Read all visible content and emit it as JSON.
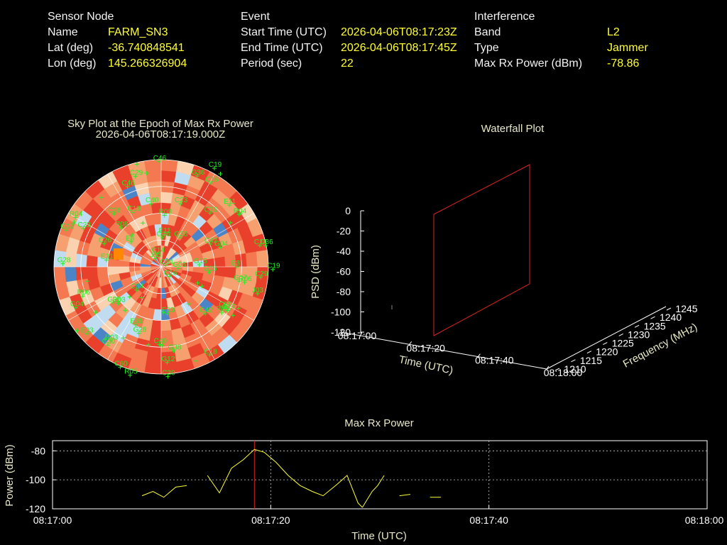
{
  "sensor": {
    "header": "Sensor Node",
    "rows": [
      {
        "label": "Name",
        "value": "FARM_SN3"
      },
      {
        "label": "Lat (deg)",
        "value": "-36.740848541"
      },
      {
        "label": "Lon (deg)",
        "value": "145.266326904"
      }
    ]
  },
  "event": {
    "header": "Event",
    "rows": [
      {
        "label": "Start Time (UTC)",
        "value": "2026-04-06T08:17:23Z"
      },
      {
        "label": "End Time (UTC)",
        "value": "2026-04-06T08:17:45Z"
      },
      {
        "label": "Period (sec)",
        "value": "22"
      }
    ]
  },
  "interference": {
    "header": "Interference",
    "rows": [
      {
        "label": "Band",
        "value": "L2"
      },
      {
        "label": "Type",
        "value": "Jammer"
      },
      {
        "label": "Max Rx Power (dBm)",
        "value": "-78.86"
      }
    ]
  },
  "skyplot": {
    "title_line1": "Sky Plot at the Epoch of Max Rx Power",
    "title_line2": "2026-04-06T08:17:19.000Z",
    "satellite_labels": [
      "R05",
      "G06",
      "G38",
      "E8",
      "C40",
      "G17",
      "R06",
      "C29",
      "G04",
      "E11",
      "C14",
      "C42",
      "G28",
      "R04",
      "C36",
      "E03",
      "C18",
      "C23",
      "R03",
      "C60",
      "C34",
      "E31",
      "C19",
      "R08",
      "C30",
      "G12",
      "C26",
      "G36",
      "C16",
      "C46",
      "J03",
      "G15"
    ],
    "colors": {
      "hot": "#e8402a",
      "warm": "#f6a070",
      "cool": "#c0dcf0",
      "cold": "#4c84c8",
      "peak": "#ff8800",
      "sat": "#22ee22"
    }
  },
  "waterfall": {
    "title": "Waterfall Plot",
    "z_label": "PSD (dBm)",
    "z_ticks": [
      "0",
      "-20",
      "-40",
      "-60",
      "-80",
      "-100",
      "-120"
    ],
    "time_label": "Time (UTC)",
    "time_ticks": [
      "08:17:00",
      "08:17:20",
      "08:17:40",
      "08:18:00"
    ],
    "freq_label": "Frequency (MHz)",
    "freq_ticks": [
      "1210",
      "1215",
      "1220",
      "1225",
      "1230",
      "1235",
      "1240",
      "1245"
    ],
    "marker_color": "#dd2222"
  },
  "chart_data": {
    "type": "line",
    "title": "Max Rx Power",
    "xlabel": "Time (UTC)",
    "ylabel": "Power (dBm)",
    "x_ticks": [
      "08:17:00",
      "08:17:20",
      "08:17:40",
      "08:18:00"
    ],
    "y_ticks": [
      "-80",
      "-100",
      "-120"
    ],
    "xlim_sec": [
      0,
      60
    ],
    "ylim": [
      -120,
      -73
    ],
    "grid": true,
    "marker_time_sec": 18.5,
    "line_color": "#ffff33",
    "marker_color": "#dd2222",
    "series": [
      {
        "points": [
          [
            8.2,
            -111
          ],
          [
            9.2,
            -108
          ],
          [
            10.2,
            -112
          ],
          [
            11.3,
            -105
          ],
          [
            12.3,
            -104
          ]
        ]
      },
      {
        "points": [
          [
            14.2,
            -97
          ],
          [
            15.3,
            -109
          ],
          [
            16.4,
            -92
          ],
          [
            17.5,
            -86
          ],
          [
            18.5,
            -79
          ],
          [
            19.4,
            -81
          ],
          [
            20.5,
            -88
          ],
          [
            21.6,
            -97
          ],
          [
            22.7,
            -104
          ],
          [
            23.8,
            -108
          ],
          [
            24.8,
            -111
          ],
          [
            26.1,
            -103
          ],
          [
            27.0,
            -97
          ],
          [
            28.0,
            -116
          ],
          [
            28.4,
            -119
          ]
        ]
      },
      {
        "points": [
          [
            28.4,
            -119
          ],
          [
            29.3,
            -108
          ],
          [
            29.8,
            -104
          ],
          [
            30.4,
            -97
          ]
        ]
      },
      {
        "points": [
          [
            31.8,
            -111
          ],
          [
            32.8,
            -110
          ]
        ]
      },
      {
        "points": [
          [
            34.6,
            -112
          ],
          [
            35.6,
            -112
          ]
        ]
      }
    ]
  }
}
